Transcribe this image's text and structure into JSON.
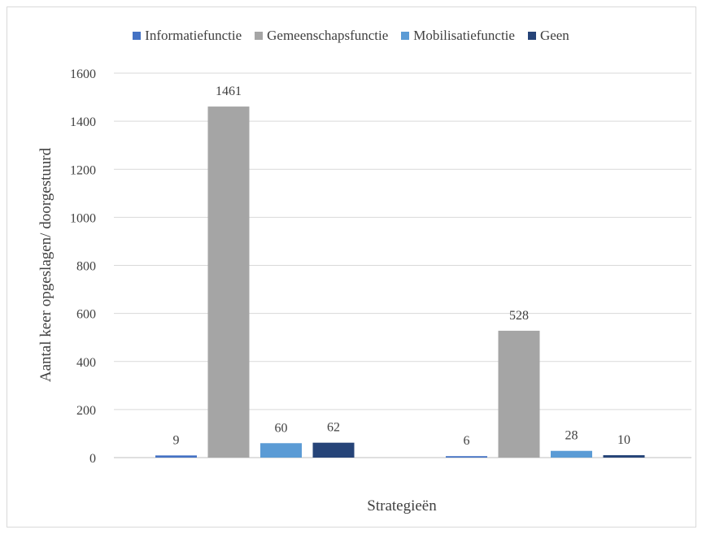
{
  "chart_data": {
    "type": "bar",
    "title": "",
    "xlabel": "Strategieën",
    "ylabel": "Aantal keer opgeslagen/ doorgestuurd",
    "ylim": [
      0,
      1600
    ],
    "yticks": [
      0,
      200,
      400,
      600,
      800,
      1000,
      1200,
      1400,
      1600
    ],
    "grid": true,
    "legend_position": "top",
    "categories": [
      "",
      ""
    ],
    "series": [
      {
        "name": "Informatiefunctie",
        "color": "#4472c4",
        "values": [
          9,
          6
        ]
      },
      {
        "name": "Gemeenschapsfunctie",
        "color": "#a5a5a5",
        "values": [
          1461,
          528
        ]
      },
      {
        "name": "Mobilisatiefunctie",
        "color": "#5b9bd5",
        "values": [
          60,
          28
        ]
      },
      {
        "name": "Geen",
        "color": "#264478",
        "values": [
          62,
          10
        ]
      }
    ]
  }
}
